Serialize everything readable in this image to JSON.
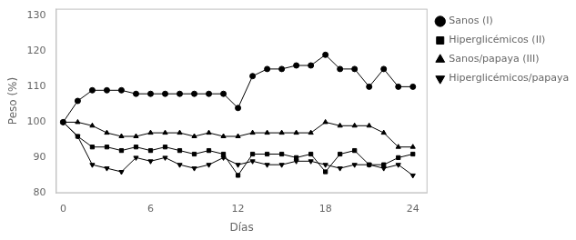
{
  "chart_data": {
    "type": "line",
    "xlabel": "Días",
    "ylabel": "Peso (%)",
    "xlim": [
      -0.5,
      25
    ],
    "ylim": [
      80,
      132
    ],
    "xticks": [
      0,
      6,
      12,
      18,
      24
    ],
    "yticks": [
      80,
      90,
      100,
      110,
      120,
      130
    ],
    "grid": false,
    "legend": "right",
    "x": [
      0,
      1,
      2,
      3,
      4,
      5,
      6,
      7,
      8,
      9,
      10,
      11,
      12,
      13,
      14,
      15,
      16,
      17,
      18,
      19,
      20,
      21,
      22,
      23,
      24
    ],
    "series": [
      {
        "name": "Sanos (I)",
        "color": "#000000",
        "marker": "circle",
        "values": [
          100,
          106,
          109,
          109,
          109,
          108,
          108,
          108,
          108,
          108,
          108,
          108,
          104,
          113,
          115,
          115,
          116,
          116,
          119,
          115,
          115,
          110,
          115,
          110,
          110
        ]
      },
      {
        "name": "Hiperglicémicos (II)",
        "color": "#000000",
        "marker": "square",
        "values": [
          100,
          96,
          93,
          93,
          92,
          93,
          92,
          93,
          92,
          91,
          92,
          91,
          85,
          91,
          91,
          91,
          90,
          91,
          86,
          91,
          92,
          88,
          88,
          90,
          91
        ]
      },
      {
        "name": "Sanos/papaya (III)",
        "color": "#000000",
        "marker": "triangle-up",
        "values": [
          100,
          100,
          99,
          97,
          96,
          96,
          97,
          97,
          97,
          96,
          97,
          96,
          96,
          97,
          97,
          97,
          97,
          97,
          100,
          99,
          99,
          99,
          97,
          93,
          93
        ]
      },
      {
        "name": "Hiperglicémicos/papaya (IV)",
        "color": "#000000",
        "marker": "triangle-down",
        "values": [
          100,
          96,
          88,
          87,
          86,
          90,
          89,
          90,
          88,
          87,
          88,
          90,
          88,
          89,
          88,
          88,
          89,
          89,
          88,
          87,
          88,
          88,
          87,
          88,
          85
        ]
      }
    ]
  }
}
